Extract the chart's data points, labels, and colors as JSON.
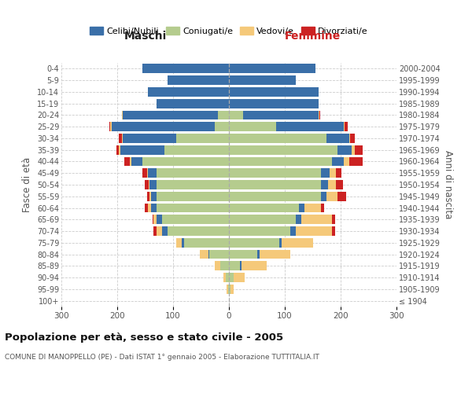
{
  "age_groups": [
    "100+",
    "95-99",
    "90-94",
    "85-89",
    "80-84",
    "75-79",
    "70-74",
    "65-69",
    "60-64",
    "55-59",
    "50-54",
    "45-49",
    "40-44",
    "35-39",
    "30-34",
    "25-29",
    "20-24",
    "15-19",
    "10-14",
    "5-9",
    "0-4"
  ],
  "birth_years": [
    "≤ 1904",
    "1905-1909",
    "1910-1914",
    "1915-1919",
    "1920-1924",
    "1925-1929",
    "1930-1934",
    "1935-1939",
    "1940-1944",
    "1945-1949",
    "1950-1954",
    "1955-1959",
    "1960-1964",
    "1965-1969",
    "1970-1974",
    "1975-1979",
    "1980-1984",
    "1985-1989",
    "1990-1994",
    "1995-1999",
    "2000-2004"
  ],
  "colors": {
    "celibi": "#3a6fa8",
    "coniugati": "#b5cc8e",
    "vedovi": "#f5c97a",
    "divorziati": "#cc2222"
  },
  "maschi": {
    "celibi": [
      0,
      0,
      0,
      1,
      2,
      5,
      10,
      10,
      10,
      10,
      12,
      15,
      20,
      80,
      95,
      185,
      170,
      130,
      145,
      110,
      155
    ],
    "coniugati": [
      0,
      2,
      5,
      15,
      35,
      80,
      110,
      120,
      130,
      130,
      130,
      130,
      155,
      115,
      95,
      25,
      20,
      0,
      0,
      0,
      0
    ],
    "vedovi": [
      0,
      2,
      5,
      10,
      15,
      10,
      10,
      5,
      5,
      2,
      2,
      2,
      2,
      2,
      2,
      2,
      2,
      0,
      0,
      0,
      0
    ],
    "divorziati": [
      0,
      0,
      0,
      0,
      0,
      0,
      5,
      2,
      5,
      5,
      7,
      8,
      10,
      5,
      5,
      2,
      0,
      0,
      0,
      0,
      0
    ]
  },
  "femmine": {
    "nubili": [
      0,
      0,
      0,
      2,
      5,
      5,
      10,
      10,
      10,
      10,
      12,
      15,
      20,
      25,
      40,
      120,
      135,
      160,
      160,
      120,
      155
    ],
    "coniugate": [
      0,
      3,
      8,
      20,
      50,
      90,
      110,
      120,
      125,
      165,
      165,
      165,
      185,
      195,
      175,
      85,
      25,
      0,
      0,
      0,
      0
    ],
    "vedove": [
      0,
      5,
      20,
      45,
      55,
      55,
      65,
      55,
      30,
      20,
      15,
      12,
      10,
      5,
      2,
      2,
      2,
      0,
      0,
      0,
      0
    ],
    "divorziate": [
      0,
      0,
      0,
      0,
      0,
      0,
      5,
      5,
      5,
      15,
      12,
      10,
      25,
      15,
      8,
      5,
      2,
      0,
      0,
      0,
      0
    ]
  },
  "xlim": 300,
  "title": "Popolazione per età, sesso e stato civile - 2005",
  "subtitle": "COMUNE DI MANOPPELLO (PE) - Dati ISTAT 1° gennaio 2005 - Elaborazione TUTTITALIA.IT",
  "ylabel_left": "Fasce di età",
  "ylabel_right": "Anni di nascita",
  "xlabel_left": "Maschi",
  "xlabel_right": "Femmine",
  "legend_labels": [
    "Celibi/Nubili",
    "Coniugati/e",
    "Vedovi/e",
    "Divorziati/e"
  ],
  "background_color": "#ffffff",
  "grid_color": "#cccccc",
  "femmine_color": "#cc2222"
}
